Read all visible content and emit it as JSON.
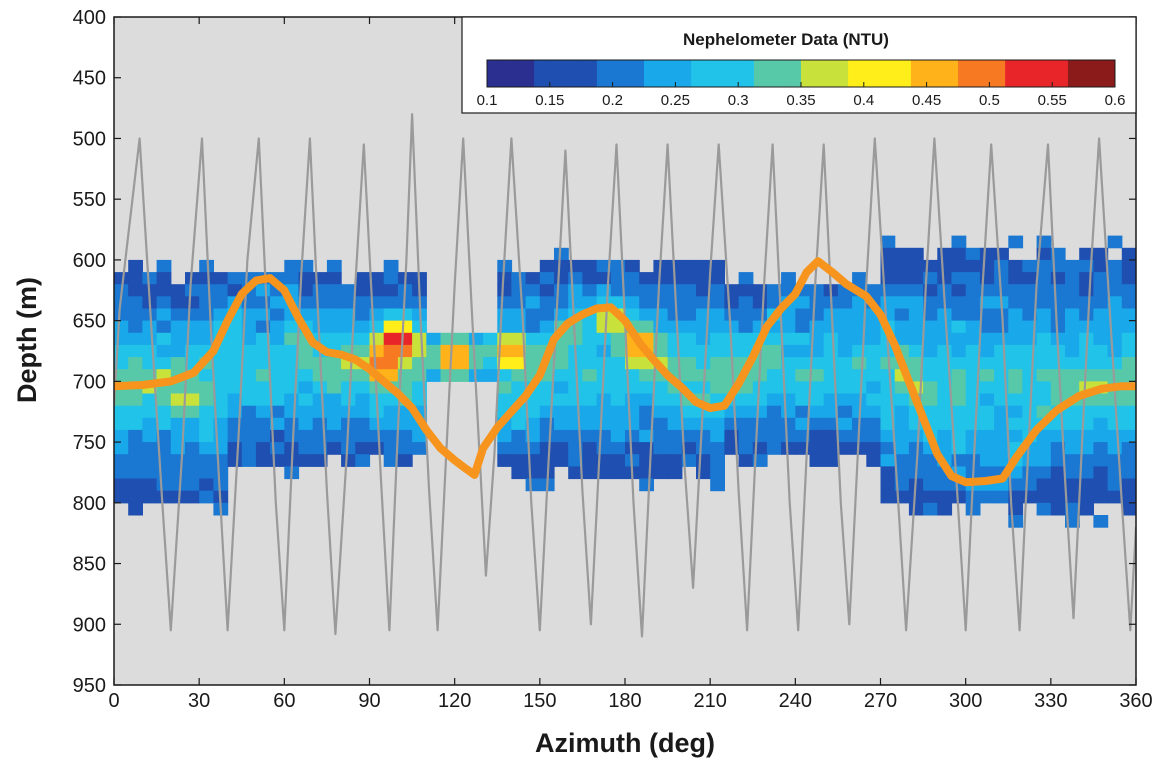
{
  "chart_data": {
    "type": "heatmap",
    "xlabel": "Azimuth (deg)",
    "ylabel": "Depth (m)",
    "xlim": [
      0,
      360
    ],
    "ylim": [
      400,
      950
    ],
    "y_inverted": true,
    "x_ticks": [
      0,
      30,
      60,
      90,
      120,
      150,
      180,
      210,
      240,
      270,
      300,
      330,
      360
    ],
    "y_ticks": [
      400,
      450,
      500,
      550,
      600,
      650,
      700,
      750,
      800,
      850,
      900,
      950
    ],
    "grid": false,
    "background_color": "#dcdcdc",
    "colorbar": {
      "title": "Nephelometer Data (NTU)",
      "position": "top-right",
      "ticks": [
        "0.1",
        "0.15",
        "0.2",
        "0.25",
        "0.3",
        "0.35",
        "0.4",
        "0.45",
        "0.5",
        "0.55",
        "0.6"
      ],
      "range": [
        0.1,
        0.6
      ],
      "colors": [
        "#2b2f8f",
        "#1f4fb0",
        "#1a78d2",
        "#19a8ea",
        "#21c3e8",
        "#58c9a8",
        "#c9e23b",
        "#ffee1a",
        "#ffb21a",
        "#f77a22",
        "#e8262a",
        "#8b1a1a"
      ]
    },
    "zigzag_track": {
      "color": "#9a9a9a",
      "points": [
        [
          0,
          720
        ],
        [
          2,
          640
        ],
        [
          5,
          580
        ],
        [
          9,
          500
        ],
        [
          13,
          650
        ],
        [
          17,
          800
        ],
        [
          20,
          905
        ],
        [
          24,
          760
        ],
        [
          27,
          620
        ],
        [
          31,
          500
        ],
        [
          34,
          650
        ],
        [
          37,
          780
        ],
        [
          40,
          905
        ],
        [
          44,
          740
        ],
        [
          47,
          600
        ],
        [
          51,
          500
        ],
        [
          54,
          650
        ],
        [
          57,
          800
        ],
        [
          60,
          905
        ],
        [
          63,
          750
        ],
        [
          66,
          610
        ],
        [
          69,
          500
        ],
        [
          72,
          650
        ],
        [
          75,
          790
        ],
        [
          78,
          908
        ],
        [
          82,
          760
        ],
        [
          85,
          620
        ],
        [
          88,
          505
        ],
        [
          91,
          640
        ],
        [
          94,
          780
        ],
        [
          97,
          905
        ],
        [
          100,
          740
        ],
        [
          103,
          600
        ],
        [
          105,
          480
        ],
        [
          108,
          650
        ],
        [
          111,
          790
        ],
        [
          114,
          905
        ],
        [
          117,
          760
        ],
        [
          120,
          620
        ],
        [
          123,
          500
        ],
        [
          126,
          640
        ],
        [
          129,
          770
        ],
        [
          131,
          860
        ],
        [
          134,
          760
        ],
        [
          137,
          620
        ],
        [
          140,
          500
        ],
        [
          144,
          650
        ],
        [
          147,
          800
        ],
        [
          150,
          905
        ],
        [
          153,
          770
        ],
        [
          156,
          640
        ],
        [
          159,
          510
        ],
        [
          162,
          650
        ],
        [
          165,
          790
        ],
        [
          168,
          900
        ],
        [
          171,
          760
        ],
        [
          174,
          620
        ],
        [
          177,
          505
        ],
        [
          180,
          650
        ],
        [
          183,
          800
        ],
        [
          186,
          910
        ],
        [
          189,
          760
        ],
        [
          192,
          620
        ],
        [
          195,
          505
        ],
        [
          198,
          640
        ],
        [
          201,
          770
        ],
        [
          204,
          870
        ],
        [
          207,
          740
        ],
        [
          210,
          610
        ],
        [
          213,
          505
        ],
        [
          217,
          650
        ],
        [
          220,
          790
        ],
        [
          223,
          905
        ],
        [
          226,
          760
        ],
        [
          229,
          620
        ],
        [
          232,
          505
        ],
        [
          235,
          650
        ],
        [
          238,
          800
        ],
        [
          241,
          905
        ],
        [
          244,
          760
        ],
        [
          247,
          620
        ],
        [
          250,
          505
        ],
        [
          253,
          650
        ],
        [
          256,
          800
        ],
        [
          259,
          900
        ],
        [
          262,
          760
        ],
        [
          265,
          620
        ],
        [
          268,
          500
        ],
        [
          272,
          650
        ],
        [
          276,
          790
        ],
        [
          279,
          905
        ],
        [
          283,
          760
        ],
        [
          286,
          620
        ],
        [
          289,
          500
        ],
        [
          293,
          650
        ],
        [
          297,
          790
        ],
        [
          300,
          905
        ],
        [
          303,
          760
        ],
        [
          306,
          620
        ],
        [
          309,
          505
        ],
        [
          313,
          650
        ],
        [
          316,
          800
        ],
        [
          319,
          905
        ],
        [
          322,
          760
        ],
        [
          325,
          620
        ],
        [
          329,
          505
        ],
        [
          332,
          650
        ],
        [
          335,
          780
        ],
        [
          338,
          895
        ],
        [
          341,
          750
        ],
        [
          344,
          610
        ],
        [
          347,
          500
        ],
        [
          351,
          650
        ],
        [
          355,
          800
        ],
        [
          358,
          905
        ],
        [
          360,
          820
        ]
      ]
    },
    "smooth_track": {
      "color": "#f7941d",
      "points": [
        [
          0,
          704
        ],
        [
          10,
          703
        ],
        [
          20,
          700
        ],
        [
          28,
          693
        ],
        [
          35,
          675
        ],
        [
          40,
          650
        ],
        [
          45,
          628
        ],
        [
          50,
          617
        ],
        [
          55,
          615
        ],
        [
          60,
          625
        ],
        [
          65,
          648
        ],
        [
          70,
          668
        ],
        [
          75,
          676
        ],
        [
          80,
          678
        ],
        [
          85,
          682
        ],
        [
          90,
          690
        ],
        [
          95,
          700
        ],
        [
          100,
          710
        ],
        [
          105,
          722
        ],
        [
          110,
          740
        ],
        [
          115,
          755
        ],
        [
          120,
          765
        ],
        [
          124,
          772
        ],
        [
          127,
          777
        ],
        [
          130,
          755
        ],
        [
          135,
          738
        ],
        [
          140,
          725
        ],
        [
          145,
          712
        ],
        [
          150,
          695
        ],
        [
          155,
          665
        ],
        [
          160,
          652
        ],
        [
          165,
          645
        ],
        [
          170,
          640
        ],
        [
          175,
          639
        ],
        [
          180,
          650
        ],
        [
          185,
          668
        ],
        [
          190,
          682
        ],
        [
          195,
          695
        ],
        [
          200,
          705
        ],
        [
          205,
          717
        ],
        [
          210,
          722
        ],
        [
          215,
          720
        ],
        [
          220,
          702
        ],
        [
          225,
          680
        ],
        [
          230,
          655
        ],
        [
          235,
          640
        ],
        [
          240,
          628
        ],
        [
          244,
          610
        ],
        [
          248,
          601
        ],
        [
          253,
          610
        ],
        [
          258,
          620
        ],
        [
          265,
          630
        ],
        [
          270,
          645
        ],
        [
          275,
          670
        ],
        [
          280,
          700
        ],
        [
          285,
          730
        ],
        [
          290,
          760
        ],
        [
          295,
          778
        ],
        [
          300,
          783
        ],
        [
          307,
          782
        ],
        [
          313,
          780
        ],
        [
          318,
          762
        ],
        [
          325,
          740
        ],
        [
          332,
          724
        ],
        [
          340,
          712
        ],
        [
          348,
          706
        ],
        [
          355,
          704
        ],
        [
          360,
          704
        ]
      ]
    },
    "nephelometer_field": {
      "grid_azimuth_step": 5,
      "grid_depth_step": 10,
      "hotspots": [
        {
          "azimuth": 100,
          "depth": 668,
          "ntu": 0.58
        },
        {
          "azimuth": 95,
          "depth": 685,
          "ntu": 0.54
        },
        {
          "azimuth": 120,
          "depth": 680,
          "ntu": 0.5
        },
        {
          "azimuth": 140,
          "depth": 676,
          "ntu": 0.47
        },
        {
          "azimuth": 185,
          "depth": 672,
          "ntu": 0.5
        },
        {
          "azimuth": 175,
          "depth": 650,
          "ntu": 0.41
        },
        {
          "azimuth": 25,
          "depth": 715,
          "ntu": 0.38
        },
        {
          "azimuth": 65,
          "depth": 665,
          "ntu": 0.35
        },
        {
          "azimuth": 160,
          "depth": 660,
          "ntu": 0.34
        }
      ]
    }
  }
}
